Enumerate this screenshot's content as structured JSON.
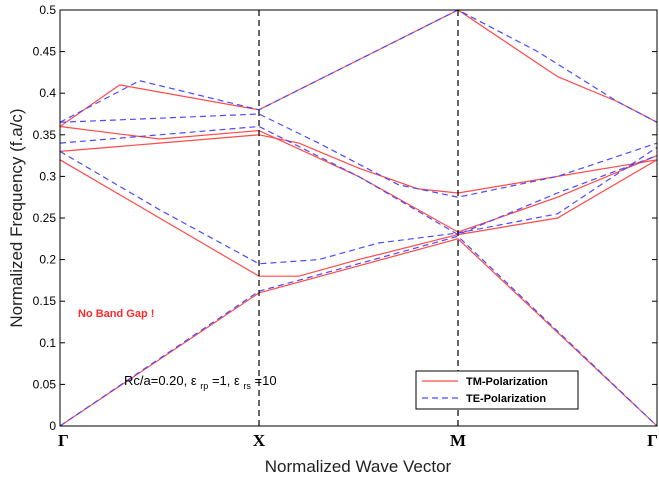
{
  "chart_data": {
    "type": "line",
    "xlabel": "Normalized Wave Vector",
    "ylabel": "Normalized Frequency (f.a/c)",
    "x_ticks": [
      "Γ",
      "X",
      "M",
      "Γ"
    ],
    "x_range": [
      0,
      3
    ],
    "ylim": [
      0,
      0.5
    ],
    "y_ticks": [
      "0",
      "0.05",
      "0.1",
      "0.15",
      "0.2",
      "0.25",
      "0.3",
      "0.35",
      "0.4",
      "0.45",
      "0.5"
    ],
    "grid": false,
    "legend_position": "bottom-right",
    "annotations": {
      "no_gap": "No Band Gap !",
      "param_base": "Rc/a=0.20,",
      "eps1_symbol": "ε",
      "eps1_sub": "rp",
      "eps1_val": "=1,",
      "eps2_symbol": "ε",
      "eps2_sub": "rs",
      "eps2_val": "=10"
    },
    "colors": {
      "tm": "#ff4a4a",
      "te": "#4a4aff",
      "no_gap_text": "#ff2a2a"
    },
    "series": [
      {
        "name": "TM-Polarization",
        "style": "solid",
        "bands": [
          [
            [
              0,
              0
            ],
            [
              1,
              0.16
            ],
            [
              2,
              0.225
            ],
            [
              3,
              0
            ]
          ],
          [
            [
              0,
              0.32
            ],
            [
              0.5,
              0.25
            ],
            [
              1,
              0.18
            ],
            [
              1.2,
              0.18
            ],
            [
              1.5,
              0.2
            ],
            [
              2,
              0.23
            ],
            [
              2.5,
              0.25
            ],
            [
              3,
              0.32
            ]
          ],
          [
            [
              0,
              0.33
            ],
            [
              0.5,
              0.34
            ],
            [
              1,
              0.35
            ],
            [
              1.2,
              0.34
            ],
            [
              1.5,
              0.31
            ],
            [
              1.8,
              0.285
            ],
            [
              2,
              0.28
            ],
            [
              2.5,
              0.3
            ],
            [
              3,
              0.32
            ]
          ],
          [
            [
              0,
              0.36
            ],
            [
              0.5,
              0.345
            ],
            [
              1,
              0.355
            ],
            [
              1.5,
              0.3
            ],
            [
              2,
              0.233
            ],
            [
              2.5,
              0.275
            ],
            [
              3,
              0.325
            ]
          ],
          [
            [
              0,
              0.36
            ],
            [
              0.3,
              0.41
            ],
            [
              1,
              0.38
            ],
            [
              1.5,
              0.44
            ],
            [
              2,
              0.5
            ],
            [
              2.5,
              0.42
            ],
            [
              2.8,
              0.39
            ],
            [
              3,
              0.365
            ]
          ]
        ]
      },
      {
        "name": "TE-Polarization",
        "style": "dashed",
        "bands": [
          [
            [
              0,
              0
            ],
            [
              1,
              0.162
            ],
            [
              2,
              0.228
            ],
            [
              3,
              0
            ]
          ],
          [
            [
              0,
              0.33
            ],
            [
              0.5,
              0.26
            ],
            [
              1,
              0.195
            ],
            [
              1.3,
              0.2
            ],
            [
              1.6,
              0.22
            ],
            [
              2,
              0.232
            ],
            [
              2.5,
              0.255
            ],
            [
              3,
              0.335
            ]
          ],
          [
            [
              0,
              0.34
            ],
            [
              0.5,
              0.35
            ],
            [
              1,
              0.36
            ],
            [
              1.5,
              0.3
            ],
            [
              2,
              0.23
            ],
            [
              2.5,
              0.28
            ],
            [
              3,
              0.325
            ]
          ],
          [
            [
              0,
              0.365
            ],
            [
              0.5,
              0.37
            ],
            [
              1,
              0.375
            ],
            [
              1.3,
              0.34
            ],
            [
              1.7,
              0.29
            ],
            [
              2,
              0.275
            ],
            [
              2.5,
              0.3
            ],
            [
              3,
              0.34
            ]
          ],
          [
            [
              0,
              0.365
            ],
            [
              0.4,
              0.415
            ],
            [
              1,
              0.38
            ],
            [
              1.5,
              0.44
            ],
            [
              2,
              0.5
            ],
            [
              2.4,
              0.45
            ],
            [
              2.8,
              0.39
            ],
            [
              3,
              0.365
            ]
          ]
        ]
      }
    ]
  }
}
